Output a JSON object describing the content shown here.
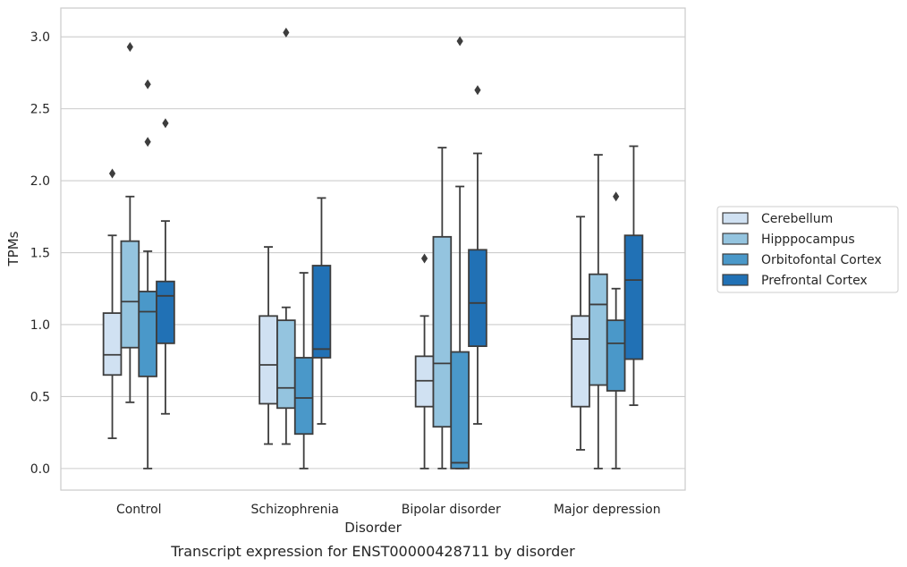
{
  "chart_data": {
    "type": "boxplot",
    "title": "Transcript expression for ENST00000428711 by disorder",
    "xlabel": "Disorder",
    "ylabel": "TPMs",
    "ylim": [
      -0.15,
      3.2
    ],
    "yticks": [
      0.0,
      0.5,
      1.0,
      1.5,
      2.0,
      2.5,
      3.0
    ],
    "ytick_labels": [
      "0.0",
      "0.5",
      "1.0",
      "1.5",
      "2.0",
      "2.5",
      "3.0"
    ],
    "grid": "horizontal",
    "legend_position": "right",
    "categories": [
      "Control",
      "Schizophrenia",
      "Bipolar disorder",
      "Major depression"
    ],
    "series": [
      {
        "name": "Cerebellum",
        "color": "#d0e1f2",
        "boxes": [
          {
            "whislo": 0.21,
            "q1": 0.65,
            "med": 0.79,
            "q3": 1.08,
            "whishi": 1.62,
            "fliers": [
              2.05
            ]
          },
          {
            "whislo": 0.17,
            "q1": 0.45,
            "med": 0.72,
            "q3": 1.06,
            "whishi": 1.54,
            "fliers": []
          },
          {
            "whislo": 0.0,
            "q1": 0.43,
            "med": 0.61,
            "q3": 0.78,
            "whishi": 1.06,
            "fliers": [
              1.46
            ]
          },
          {
            "whislo": 0.13,
            "q1": 0.43,
            "med": 0.9,
            "q3": 1.06,
            "whishi": 1.75,
            "fliers": []
          }
        ]
      },
      {
        "name": "Hipppocampus",
        "color": "#94c4df",
        "boxes": [
          {
            "whislo": 0.46,
            "q1": 0.84,
            "med": 1.16,
            "q3": 1.58,
            "whishi": 1.89,
            "fliers": [
              2.93
            ]
          },
          {
            "whislo": 0.17,
            "q1": 0.42,
            "med": 0.56,
            "q3": 1.03,
            "whishi": 1.12,
            "fliers": [
              3.03
            ]
          },
          {
            "whislo": 0.0,
            "q1": 0.29,
            "med": 0.73,
            "q3": 1.61,
            "whishi": 2.23,
            "fliers": []
          },
          {
            "whislo": 0.0,
            "q1": 0.58,
            "med": 1.14,
            "q3": 1.35,
            "whishi": 2.18,
            "fliers": []
          }
        ]
      },
      {
        "name": "Orbitofontal Cortex",
        "color": "#4a98c9",
        "boxes": [
          {
            "whislo": 0.0,
            "q1": 0.64,
            "med": 1.09,
            "q3": 1.23,
            "whishi": 1.51,
            "fliers": [
              2.27,
              2.67
            ]
          },
          {
            "whislo": 0.0,
            "q1": 0.24,
            "med": 0.49,
            "q3": 0.77,
            "whishi": 1.36,
            "fliers": []
          },
          {
            "whislo": 0.0,
            "q1": 0.0,
            "med": 0.04,
            "q3": 0.81,
            "whishi": 1.96,
            "fliers": [
              2.97
            ]
          },
          {
            "whislo": 0.0,
            "q1": 0.54,
            "med": 0.87,
            "q3": 1.03,
            "whishi": 1.25,
            "fliers": [
              1.89
            ]
          }
        ]
      },
      {
        "name": "Prefrontal Cortex",
        "color": "#2171b5",
        "boxes": [
          {
            "whislo": 0.38,
            "q1": 0.87,
            "med": 1.2,
            "q3": 1.3,
            "whishi": 1.72,
            "fliers": [
              2.4
            ]
          },
          {
            "whislo": 0.31,
            "q1": 0.77,
            "med": 0.83,
            "q3": 1.41,
            "whishi": 1.88,
            "fliers": []
          },
          {
            "whislo": 0.31,
            "q1": 0.85,
            "med": 1.15,
            "q3": 1.52,
            "whishi": 2.19,
            "fliers": [
              2.63
            ]
          },
          {
            "whislo": 0.44,
            "q1": 0.76,
            "med": 1.31,
            "q3": 1.62,
            "whishi": 2.24,
            "fliers": []
          }
        ]
      }
    ]
  }
}
